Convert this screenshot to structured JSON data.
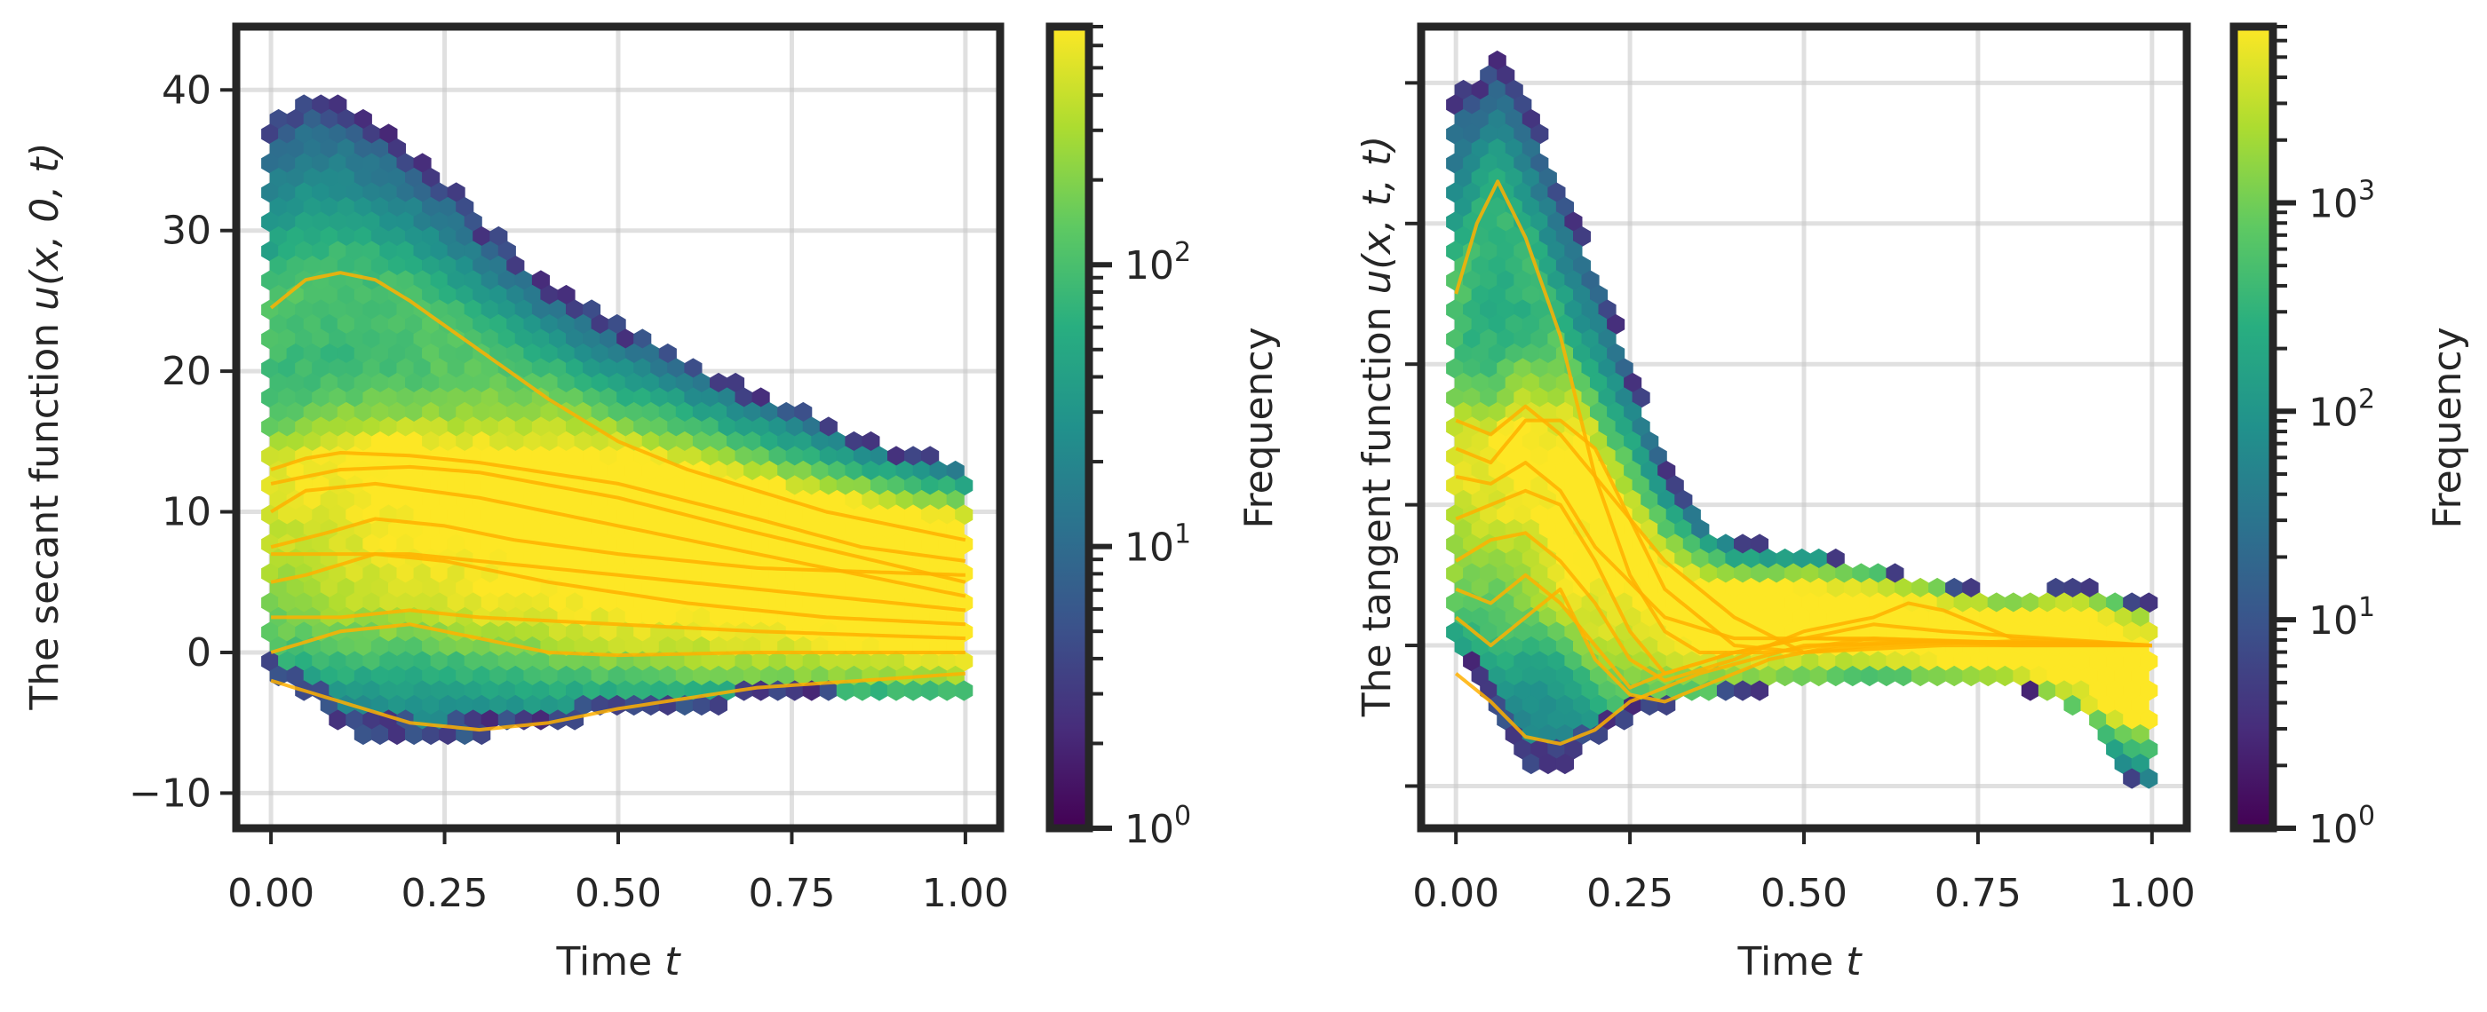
{
  "chart_data": [
    {
      "type": "hexbin",
      "panel": "left",
      "xlabel_prefix": "Time ",
      "xlabel_var": "t",
      "ylabel_prefix": "The secant function ",
      "ylabel_expr": "u(x, 0, t)",
      "xlim": [
        -0.05,
        1.05
      ],
      "ylim": [
        -12.5,
        44.5
      ],
      "x_ticks": [
        0,
        0.25,
        0.5,
        0.75,
        1.0
      ],
      "x_tick_labels": [
        "0.00",
        "0.25",
        "0.50",
        "0.75",
        "1.00"
      ],
      "y_ticks": [
        -10,
        0,
        10,
        20,
        30,
        40
      ],
      "y_tick_labels": [
        "−10",
        "0",
        "10",
        "20",
        "30",
        "40"
      ],
      "grid": true,
      "envelope_upper": [
        [
          0,
          38
        ],
        [
          0.05,
          40
        ],
        [
          0.1,
          39.5
        ],
        [
          0.15,
          38
        ],
        [
          0.2,
          36
        ],
        [
          0.25,
          34
        ],
        [
          0.3,
          31
        ],
        [
          0.35,
          28.5
        ],
        [
          0.4,
          26.5
        ],
        [
          0.5,
          23.5
        ],
        [
          0.6,
          21
        ],
        [
          0.7,
          18.5
        ],
        [
          0.8,
          16.5
        ],
        [
          0.9,
          14.5
        ],
        [
          1.0,
          13.5
        ]
      ],
      "envelope_lower": [
        [
          0,
          -2
        ],
        [
          0.05,
          -3
        ],
        [
          0.1,
          -5.5
        ],
        [
          0.15,
          -6.5
        ],
        [
          0.25,
          -6.5
        ],
        [
          0.35,
          -5.5
        ],
        [
          0.5,
          -4.5
        ],
        [
          0.7,
          -3.5
        ],
        [
          0.9,
          -3.5
        ],
        [
          1.0,
          -3.5
        ]
      ],
      "sample_curves": [
        [
          [
            0,
            24.5
          ],
          [
            0.05,
            26.5
          ],
          [
            0.1,
            27
          ],
          [
            0.15,
            26.5
          ],
          [
            0.2,
            25
          ],
          [
            0.3,
            21.5
          ],
          [
            0.4,
            18
          ],
          [
            0.5,
            15
          ],
          [
            0.6,
            13
          ],
          [
            0.7,
            11.5
          ],
          [
            0.8,
            10
          ],
          [
            0.9,
            9
          ],
          [
            1.0,
            8
          ]
        ],
        [
          [
            0,
            13
          ],
          [
            0.05,
            13.8
          ],
          [
            0.1,
            14.2
          ],
          [
            0.2,
            14
          ],
          [
            0.3,
            13.5
          ],
          [
            0.5,
            12
          ],
          [
            0.7,
            9.5
          ],
          [
            0.85,
            7.5
          ],
          [
            1.0,
            6.5
          ]
        ],
        [
          [
            0,
            12
          ],
          [
            0.1,
            13
          ],
          [
            0.2,
            13.2
          ],
          [
            0.3,
            12.8
          ],
          [
            0.5,
            11
          ],
          [
            0.7,
            8.5
          ],
          [
            1.0,
            5
          ]
        ],
        [
          [
            0,
            10
          ],
          [
            0.05,
            11.5
          ],
          [
            0.15,
            12
          ],
          [
            0.3,
            11
          ],
          [
            0.5,
            9
          ],
          [
            0.7,
            7
          ],
          [
            1.0,
            4
          ]
        ],
        [
          [
            0,
            7.5
          ],
          [
            0.08,
            8.5
          ],
          [
            0.15,
            9.5
          ],
          [
            0.25,
            9
          ],
          [
            0.35,
            8
          ],
          [
            0.5,
            7
          ],
          [
            0.7,
            6
          ],
          [
            1.0,
            5.5
          ]
        ],
        [
          [
            0,
            7
          ],
          [
            0.1,
            7
          ],
          [
            0.2,
            7
          ],
          [
            0.3,
            6.5
          ],
          [
            0.5,
            5.5
          ],
          [
            0.7,
            4.5
          ],
          [
            1.0,
            3
          ]
        ],
        [
          [
            0,
            5
          ],
          [
            0.05,
            5.5
          ],
          [
            0.15,
            7
          ],
          [
            0.25,
            6.5
          ],
          [
            0.4,
            5
          ],
          [
            0.6,
            3.5
          ],
          [
            0.8,
            2.5
          ],
          [
            1.0,
            2
          ]
        ],
        [
          [
            0,
            2.5
          ],
          [
            0.1,
            2.5
          ],
          [
            0.2,
            3
          ],
          [
            0.3,
            2.5
          ],
          [
            0.5,
            2
          ],
          [
            0.7,
            1.5
          ],
          [
            1.0,
            1
          ]
        ],
        [
          [
            0,
            0
          ],
          [
            0.1,
            1.5
          ],
          [
            0.2,
            2
          ],
          [
            0.3,
            1
          ],
          [
            0.4,
            0
          ],
          [
            0.5,
            -0.2
          ],
          [
            0.7,
            0
          ],
          [
            1.0,
            0
          ]
        ],
        [
          [
            0,
            -2
          ],
          [
            0.1,
            -3.5
          ],
          [
            0.2,
            -5
          ],
          [
            0.3,
            -5.5
          ],
          [
            0.4,
            -5
          ],
          [
            0.5,
            -4
          ],
          [
            0.7,
            -2.5
          ],
          [
            1.0,
            -1.5
          ]
        ]
      ],
      "colorbar": {
        "label": "Frequency",
        "scale": "log",
        "min": 1,
        "max": 700,
        "major_ticks": [
          1,
          10,
          100
        ],
        "major_tick_bases": [
          "10",
          "10",
          "10"
        ],
        "major_tick_exps": [
          "0",
          "1",
          "2"
        ]
      }
    },
    {
      "type": "hexbin",
      "panel": "right",
      "xlabel_prefix": "Time ",
      "xlabel_var": "t",
      "ylabel_prefix": "The tangent function ",
      "ylabel_expr": "u(x, t, t)",
      "xlim": [
        -0.05,
        1.05
      ],
      "ylim": [
        -13,
        44
      ],
      "x_ticks": [
        0,
        0.25,
        0.5,
        0.75,
        1.0
      ],
      "x_tick_labels": [
        "0.00",
        "0.25",
        "0.50",
        "0.75",
        "1.00"
      ],
      "y_ticks": [
        -10,
        0,
        10,
        20,
        30,
        40
      ],
      "y_tick_labels": [],
      "grid": true,
      "envelope_upper": [
        [
          0,
          39
        ],
        [
          0.04,
          41
        ],
        [
          0.07,
          42
        ],
        [
          0.1,
          39
        ],
        [
          0.15,
          33
        ],
        [
          0.2,
          27
        ],
        [
          0.25,
          20
        ],
        [
          0.3,
          13
        ],
        [
          0.35,
          9
        ],
        [
          0.4,
          7.5
        ],
        [
          0.5,
          7
        ],
        [
          0.6,
          5.5
        ],
        [
          0.7,
          4.5
        ],
        [
          0.8,
          3.5
        ],
        [
          0.9,
          4.5
        ],
        [
          1.0,
          3
        ]
      ],
      "envelope_lower": [
        [
          0,
          -1
        ],
        [
          0.05,
          -5
        ],
        [
          0.1,
          -8.5
        ],
        [
          0.15,
          -9
        ],
        [
          0.2,
          -7
        ],
        [
          0.25,
          -5
        ],
        [
          0.3,
          -4.5
        ],
        [
          0.4,
          -3.5
        ],
        [
          0.6,
          -2.5
        ],
        [
          0.8,
          -3
        ],
        [
          0.9,
          -5
        ],
        [
          0.95,
          -9.5
        ],
        [
          1.0,
          -10.5
        ]
      ],
      "sample_curves": [
        [
          [
            0,
            25
          ],
          [
            0.03,
            30
          ],
          [
            0.06,
            33
          ],
          [
            0.1,
            29
          ],
          [
            0.15,
            22
          ],
          [
            0.2,
            12
          ],
          [
            0.25,
            5
          ],
          [
            0.3,
            1
          ],
          [
            0.35,
            -0.5
          ],
          [
            0.45,
            -0.5
          ],
          [
            0.6,
            0.5
          ],
          [
            0.8,
            0.2
          ],
          [
            1.0,
            0
          ]
        ],
        [
          [
            0,
            16
          ],
          [
            0.05,
            15
          ],
          [
            0.1,
            17
          ],
          [
            0.15,
            15
          ],
          [
            0.2,
            12
          ],
          [
            0.3,
            6
          ],
          [
            0.4,
            2
          ],
          [
            0.5,
            -0.5
          ],
          [
            0.6,
            0
          ],
          [
            0.8,
            0.3
          ],
          [
            1.0,
            0
          ]
        ],
        [
          [
            0,
            14
          ],
          [
            0.05,
            13
          ],
          [
            0.1,
            16
          ],
          [
            0.15,
            16
          ],
          [
            0.2,
            14
          ],
          [
            0.25,
            9
          ],
          [
            0.3,
            4
          ],
          [
            0.4,
            0
          ],
          [
            0.5,
            -0.5
          ],
          [
            0.7,
            0
          ],
          [
            1.0,
            0
          ]
        ],
        [
          [
            0,
            12
          ],
          [
            0.05,
            11.5
          ],
          [
            0.1,
            13
          ],
          [
            0.15,
            11
          ],
          [
            0.2,
            7
          ],
          [
            0.3,
            2
          ],
          [
            0.4,
            0.5
          ],
          [
            0.5,
            0.5
          ],
          [
            0.6,
            1.5
          ],
          [
            0.7,
            1
          ],
          [
            1.0,
            0
          ]
        ],
        [
          [
            0,
            9
          ],
          [
            0.05,
            10
          ],
          [
            0.1,
            11
          ],
          [
            0.15,
            10
          ],
          [
            0.2,
            6
          ],
          [
            0.25,
            1
          ],
          [
            0.3,
            -2
          ],
          [
            0.4,
            -0.5
          ],
          [
            0.5,
            0.5
          ],
          [
            0.6,
            0.5
          ],
          [
            0.8,
            0
          ],
          [
            1.0,
            0
          ]
        ],
        [
          [
            0,
            6
          ],
          [
            0.05,
            7.5
          ],
          [
            0.1,
            8
          ],
          [
            0.15,
            6
          ],
          [
            0.2,
            3
          ],
          [
            0.25,
            -1
          ],
          [
            0.3,
            -2.5
          ],
          [
            0.4,
            -1
          ],
          [
            0.5,
            1
          ],
          [
            0.6,
            2
          ],
          [
            0.65,
            3
          ],
          [
            0.7,
            2.5
          ],
          [
            0.8,
            0.5
          ],
          [
            1.0,
            0
          ]
        ],
        [
          [
            0,
            4
          ],
          [
            0.05,
            3
          ],
          [
            0.1,
            5
          ],
          [
            0.15,
            3
          ],
          [
            0.2,
            0
          ],
          [
            0.25,
            -3
          ],
          [
            0.3,
            -2
          ],
          [
            0.4,
            -0.5
          ],
          [
            0.5,
            0.5
          ],
          [
            0.7,
            0.3
          ],
          [
            1.0,
            0
          ]
        ],
        [
          [
            0,
            2
          ],
          [
            0.05,
            0
          ],
          [
            0.1,
            2
          ],
          [
            0.15,
            4
          ],
          [
            0.2,
            -1
          ],
          [
            0.25,
            -3.5
          ],
          [
            0.3,
            -4
          ],
          [
            0.35,
            -3
          ],
          [
            0.45,
            -1
          ],
          [
            0.55,
            0
          ],
          [
            0.7,
            0.3
          ],
          [
            1.0,
            0
          ]
        ],
        [
          [
            0,
            -2
          ],
          [
            0.05,
            -4
          ],
          [
            0.1,
            -6.5
          ],
          [
            0.15,
            -7
          ],
          [
            0.2,
            -6
          ],
          [
            0.25,
            -4
          ],
          [
            0.35,
            -2
          ],
          [
            0.5,
            0
          ],
          [
            0.7,
            0.3
          ],
          [
            1.0,
            0
          ]
        ]
      ],
      "colorbar": {
        "label": "Frequency",
        "scale": "log",
        "min": 1,
        "max": 7000,
        "major_ticks": [
          1,
          10,
          100,
          1000
        ],
        "major_tick_bases": [
          "10",
          "10",
          "10",
          "10"
        ],
        "major_tick_exps": [
          "0",
          "1",
          "2",
          "3"
        ]
      }
    }
  ]
}
